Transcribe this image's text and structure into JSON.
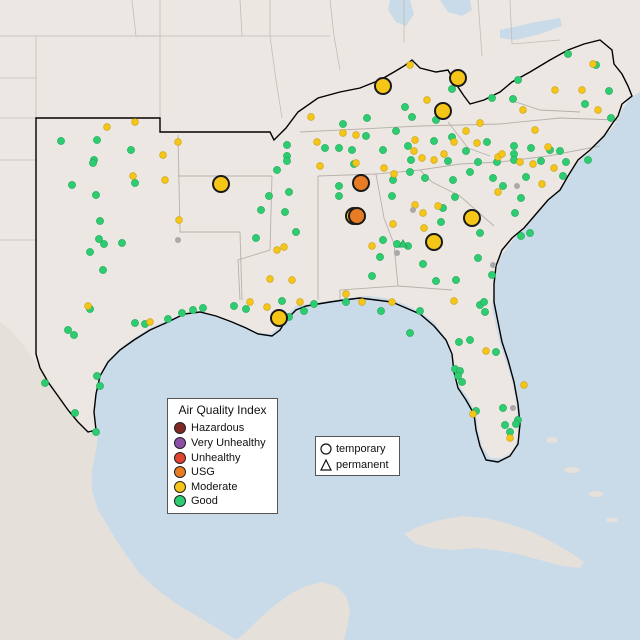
{
  "legend": {
    "aqi_title": "Air Quality Index",
    "aqi_levels": [
      {
        "label": "Hazardous",
        "color": "#7e2a22"
      },
      {
        "label": "Very Unhealthy",
        "color": "#8e4fa6"
      },
      {
        "label": "Unhealthy",
        "color": "#e0432e"
      },
      {
        "label": "USG",
        "color": "#e87c25"
      },
      {
        "label": "Moderate",
        "color": "#f5c518"
      },
      {
        "label": "Good",
        "color": "#2ecc71"
      }
    ],
    "monitor_types": [
      {
        "label": "temporary",
        "icon": "circle-icon"
      },
      {
        "label": "permanent",
        "icon": "triangle-icon"
      }
    ]
  },
  "map": {
    "land_color": "#ece7e2",
    "water_color": "#c9dbe9",
    "boundary_color": "#000000",
    "state_line_color": "#b5b0ab"
  }
}
